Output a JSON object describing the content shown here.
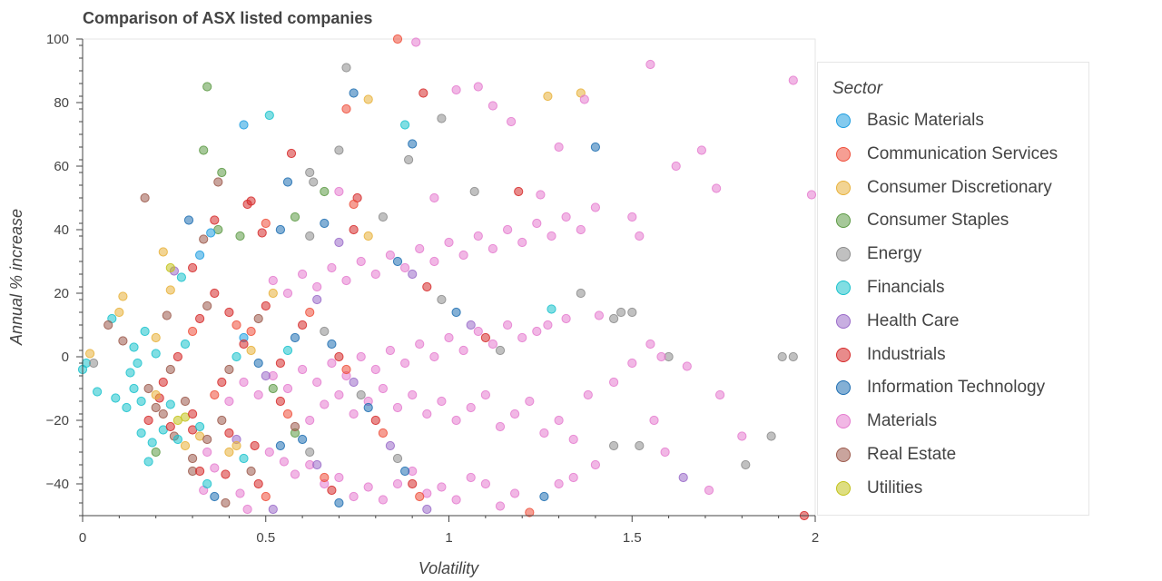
{
  "chart_data": {
    "type": "scatter",
    "title": "Comparison of ASX listed companies",
    "xlabel": "Volatility",
    "ylabel": "Annual % increase",
    "xlim": [
      0,
      2
    ],
    "ylim": [
      -50,
      100
    ],
    "x_ticks": [
      "0",
      "0.5",
      "1",
      "1.5",
      "2"
    ],
    "y_ticks": [
      "100",
      "80",
      "60",
      "40",
      "20",
      "0",
      "−20",
      "−40"
    ],
    "grid": false,
    "legend": {
      "title": "Sector",
      "position": "right"
    },
    "series": [
      {
        "name": "Basic Materials",
        "color": "#1f9ee0"
      },
      {
        "name": "Communication Services",
        "color": "#ef4f3b"
      },
      {
        "name": "Consumer Discretionary",
        "color": "#e8b13a"
      },
      {
        "name": "Consumer Staples",
        "color": "#5d9a45"
      },
      {
        "name": "Energy",
        "color": "#8c8c8c"
      },
      {
        "name": "Financials",
        "color": "#1ac2cc"
      },
      {
        "name": "Health Care",
        "color": "#9a6bc9"
      },
      {
        "name": "Industrials",
        "color": "#d62b2b"
      },
      {
        "name": "Information Technology",
        "color": "#1f6fb2"
      },
      {
        "name": "Materials",
        "color": "#e57ccf"
      },
      {
        "name": "Real Estate",
        "color": "#9c5a4c"
      },
      {
        "name": "Utilities",
        "color": "#c2c21a"
      }
    ],
    "points": [
      [
        0.86,
        100,
        1
      ],
      [
        0.91,
        99,
        9
      ],
      [
        1.55,
        92,
        9
      ],
      [
        1.94,
        87,
        9
      ],
      [
        0.72,
        91,
        4
      ],
      [
        0.34,
        85,
        3
      ],
      [
        0.74,
        83,
        8
      ],
      [
        0.93,
        83,
        7
      ],
      [
        0.78,
        81,
        2
      ],
      [
        1.27,
        82,
        2
      ],
      [
        1.36,
        83,
        2
      ],
      [
        1.02,
        84,
        9
      ],
      [
        1.08,
        85,
        9
      ],
      [
        1.12,
        79,
        9
      ],
      [
        0.72,
        78,
        1
      ],
      [
        0.98,
        75,
        4
      ],
      [
        0.51,
        76,
        5
      ],
      [
        0.44,
        73,
        0
      ],
      [
        0.88,
        73,
        5
      ],
      [
        1.4,
        66,
        8
      ],
      [
        0.9,
        67,
        8
      ],
      [
        1.17,
        74,
        9
      ],
      [
        1.37,
        81,
        9
      ],
      [
        1.3,
        66,
        9
      ],
      [
        1.62,
        60,
        9
      ],
      [
        1.69,
        65,
        9
      ],
      [
        1.73,
        53,
        9
      ],
      [
        0.33,
        65,
        3
      ],
      [
        0.57,
        64,
        7
      ],
      [
        0.7,
        65,
        4
      ],
      [
        0.89,
        62,
        4
      ],
      [
        0.38,
        58,
        3
      ],
      [
        0.37,
        55,
        10
      ],
      [
        0.63,
        55,
        4
      ],
      [
        0.62,
        58,
        4
      ],
      [
        0.56,
        55,
        8
      ],
      [
        0.7,
        52,
        9
      ],
      [
        0.66,
        52,
        3
      ],
      [
        0.75,
        50,
        7
      ],
      [
        0.74,
        48,
        1
      ],
      [
        0.96,
        50,
        9
      ],
      [
        1.07,
        52,
        4
      ],
      [
        1.19,
        52,
        7
      ],
      [
        1.25,
        51,
        9
      ],
      [
        0.45,
        48,
        7
      ],
      [
        0.46,
        49,
        7
      ],
      [
        0.49,
        39,
        7
      ],
      [
        0.43,
        38,
        3
      ],
      [
        0.37,
        40,
        3
      ],
      [
        0.36,
        43,
        7
      ],
      [
        0.33,
        37,
        10
      ],
      [
        0.35,
        39,
        0
      ],
      [
        0.29,
        43,
        8
      ],
      [
        0.32,
        32,
        0
      ],
      [
        0.22,
        33,
        2
      ],
      [
        0.25,
        27,
        6
      ],
      [
        0.3,
        28,
        7
      ],
      [
        0.27,
        25,
        5
      ],
      [
        0.24,
        21,
        2
      ],
      [
        0.23,
        13,
        10
      ],
      [
        0.11,
        19,
        2
      ],
      [
        0.1,
        14,
        2
      ],
      [
        0.08,
        12,
        5
      ],
      [
        0.07,
        10,
        10
      ],
      [
        0.11,
        5,
        10
      ],
      [
        0.14,
        3,
        5
      ],
      [
        0.17,
        8,
        5
      ],
      [
        0.2,
        6,
        2
      ],
      [
        0.2,
        1,
        5
      ],
      [
        0.15,
        -2,
        5
      ],
      [
        0.13,
        -5,
        5
      ],
      [
        0.14,
        -10,
        5
      ],
      [
        0.16,
        -14,
        5
      ],
      [
        0.12,
        -16,
        5
      ],
      [
        0.09,
        -13,
        5
      ],
      [
        0.04,
        -11,
        5
      ],
      [
        0.01,
        -2,
        5
      ],
      [
        0.0,
        -4,
        5
      ],
      [
        0.02,
        1,
        2
      ],
      [
        0.03,
        -2,
        4
      ],
      [
        0.18,
        -10,
        10
      ],
      [
        0.21,
        -13,
        7
      ],
      [
        0.24,
        -15,
        5
      ],
      [
        0.22,
        -23,
        5
      ],
      [
        0.19,
        -27,
        5
      ],
      [
        0.18,
        -33,
        5
      ],
      [
        0.2,
        -30,
        3
      ],
      [
        0.25,
        -25,
        10
      ],
      [
        0.28,
        -19,
        11
      ],
      [
        0.3,
        -23,
        7
      ],
      [
        0.32,
        -25,
        2
      ],
      [
        0.34,
        -30,
        9
      ],
      [
        0.36,
        -35,
        9
      ],
      [
        0.39,
        -37,
        7
      ],
      [
        0.3,
        -36,
        10
      ],
      [
        0.33,
        -42,
        9
      ],
      [
        0.39,
        -46,
        10
      ],
      [
        0.43,
        -43,
        9
      ],
      [
        0.45,
        -48,
        9
      ],
      [
        0.4,
        -30,
        2
      ],
      [
        0.42,
        -26,
        6
      ],
      [
        0.47,
        -28,
        7
      ],
      [
        0.51,
        -30,
        9
      ],
      [
        0.55,
        -33,
        9
      ],
      [
        0.58,
        -37,
        9
      ],
      [
        0.62,
        -34,
        9
      ],
      [
        0.66,
        -40,
        9
      ],
      [
        0.7,
        -38,
        9
      ],
      [
        0.74,
        -44,
        9
      ],
      [
        0.78,
        -41,
        9
      ],
      [
        0.82,
        -45,
        9
      ],
      [
        0.86,
        -40,
        9
      ],
      [
        0.9,
        -36,
        9
      ],
      [
        0.94,
        -43,
        9
      ],
      [
        0.98,
        -41,
        9
      ],
      [
        1.02,
        -45,
        9
      ],
      [
        1.06,
        -38,
        9
      ],
      [
        1.1,
        -40,
        9
      ],
      [
        1.14,
        -47,
        9
      ],
      [
        1.18,
        -43,
        9
      ],
      [
        1.22,
        -49,
        1
      ],
      [
        1.26,
        -44,
        8
      ],
      [
        1.3,
        -40,
        9
      ],
      [
        1.34,
        -38,
        9
      ],
      [
        1.4,
        -34,
        9
      ],
      [
        1.45,
        -28,
        4
      ],
      [
        1.52,
        -28,
        4
      ],
      [
        1.56,
        -20,
        9
      ],
      [
        1.59,
        -30,
        9
      ],
      [
        1.64,
        -38,
        6
      ],
      [
        1.71,
        -42,
        9
      ],
      [
        1.81,
        -34,
        4
      ],
      [
        1.88,
        -25,
        4
      ],
      [
        1.97,
        -50,
        7
      ],
      [
        0.54,
        -28,
        8
      ],
      [
        0.58,
        -24,
        3
      ],
      [
        0.62,
        -20,
        9
      ],
      [
        0.66,
        -15,
        9
      ],
      [
        0.7,
        -12,
        9
      ],
      [
        0.74,
        -18,
        9
      ],
      [
        0.78,
        -14,
        9
      ],
      [
        0.82,
        -10,
        9
      ],
      [
        0.86,
        -16,
        9
      ],
      [
        0.9,
        -12,
        9
      ],
      [
        0.94,
        -18,
        9
      ],
      [
        0.98,
        -14,
        9
      ],
      [
        1.02,
        -20,
        9
      ],
      [
        1.06,
        -16,
        9
      ],
      [
        1.1,
        -12,
        9
      ],
      [
        1.14,
        -22,
        9
      ],
      [
        1.18,
        -18,
        9
      ],
      [
        1.22,
        -14,
        9
      ],
      [
        1.26,
        -24,
        9
      ],
      [
        1.3,
        -20,
        9
      ],
      [
        1.34,
        -26,
        9
      ],
      [
        1.38,
        -12,
        9
      ],
      [
        1.45,
        -8,
        9
      ],
      [
        1.5,
        -2,
        9
      ],
      [
        1.55,
        4,
        9
      ],
      [
        1.6,
        0,
        4
      ],
      [
        1.58,
        0,
        9
      ],
      [
        1.65,
        -3,
        9
      ],
      [
        1.74,
        -12,
        9
      ],
      [
        1.8,
        -25,
        9
      ],
      [
        1.91,
        0,
        4
      ],
      [
        1.94,
        0,
        4
      ],
      [
        1.99,
        51,
        9
      ],
      [
        1.47,
        14,
        4
      ],
      [
        1.5,
        14,
        4
      ],
      [
        1.45,
        12,
        4
      ],
      [
        1.41,
        13,
        9
      ],
      [
        1.36,
        20,
        4
      ],
      [
        1.32,
        12,
        9
      ],
      [
        1.28,
        15,
        5
      ],
      [
        1.27,
        10,
        9
      ],
      [
        1.24,
        8,
        9
      ],
      [
        1.2,
        6,
        9
      ],
      [
        1.16,
        10,
        9
      ],
      [
        1.12,
        4,
        9
      ],
      [
        1.08,
        8,
        9
      ],
      [
        1.04,
        2,
        9
      ],
      [
        1.0,
        6,
        9
      ],
      [
        0.96,
        0,
        9
      ],
      [
        0.92,
        4,
        9
      ],
      [
        0.88,
        -2,
        9
      ],
      [
        0.84,
        2,
        9
      ],
      [
        0.8,
        -4,
        9
      ],
      [
        0.76,
        0,
        9
      ],
      [
        0.72,
        -6,
        9
      ],
      [
        0.68,
        -2,
        9
      ],
      [
        0.64,
        -8,
        9
      ],
      [
        0.6,
        -4,
        9
      ],
      [
        0.56,
        -10,
        9
      ],
      [
        0.52,
        -6,
        9
      ],
      [
        0.48,
        -12,
        9
      ],
      [
        0.44,
        -8,
        9
      ],
      [
        0.4,
        -14,
        9
      ],
      [
        0.52,
        24,
        9
      ],
      [
        0.56,
        20,
        9
      ],
      [
        0.6,
        26,
        9
      ],
      [
        0.64,
        22,
        9
      ],
      [
        0.68,
        28,
        9
      ],
      [
        0.72,
        24,
        9
      ],
      [
        0.76,
        30,
        9
      ],
      [
        0.8,
        26,
        9
      ],
      [
        0.84,
        32,
        9
      ],
      [
        0.88,
        28,
        9
      ],
      [
        0.92,
        34,
        9
      ],
      [
        0.96,
        30,
        9
      ],
      [
        1.0,
        36,
        9
      ],
      [
        1.04,
        32,
        9
      ],
      [
        1.08,
        38,
        9
      ],
      [
        1.12,
        34,
        9
      ],
      [
        1.16,
        40,
        9
      ],
      [
        1.2,
        36,
        9
      ],
      [
        1.24,
        42,
        9
      ],
      [
        1.28,
        38,
        9
      ],
      [
        1.32,
        44,
        9
      ],
      [
        1.36,
        40,
        9
      ],
      [
        1.4,
        47,
        9
      ],
      [
        1.5,
        44,
        9
      ],
      [
        1.52,
        38,
        9
      ],
      [
        0.5,
        42,
        1
      ],
      [
        0.54,
        40,
        8
      ],
      [
        0.58,
        44,
        3
      ],
      [
        0.62,
        38,
        4
      ],
      [
        0.66,
        42,
        8
      ],
      [
        0.7,
        36,
        6
      ],
      [
        0.74,
        40,
        7
      ],
      [
        0.78,
        38,
        2
      ],
      [
        0.82,
        44,
        4
      ],
      [
        0.86,
        30,
        8
      ],
      [
        0.9,
        26,
        6
      ],
      [
        0.94,
        22,
        7
      ],
      [
        0.98,
        18,
        4
      ],
      [
        1.02,
        14,
        8
      ],
      [
        1.06,
        10,
        6
      ],
      [
        1.1,
        6,
        7
      ],
      [
        1.14,
        2,
        4
      ],
      [
        0.4,
        14,
        7
      ],
      [
        0.42,
        10,
        1
      ],
      [
        0.44,
        6,
        0
      ],
      [
        0.46,
        2,
        2
      ],
      [
        0.48,
        -2,
        8
      ],
      [
        0.5,
        -6,
        6
      ],
      [
        0.52,
        -10,
        3
      ],
      [
        0.54,
        -14,
        7
      ],
      [
        0.56,
        -18,
        1
      ],
      [
        0.58,
        -22,
        10
      ],
      [
        0.6,
        -26,
        8
      ],
      [
        0.62,
        -30,
        4
      ],
      [
        0.64,
        -34,
        6
      ],
      [
        0.66,
        -38,
        1
      ],
      [
        0.68,
        -42,
        7
      ],
      [
        0.7,
        -46,
        8
      ],
      [
        0.36,
        20,
        7
      ],
      [
        0.34,
        16,
        10
      ],
      [
        0.32,
        12,
        7
      ],
      [
        0.3,
        8,
        1
      ],
      [
        0.28,
        4,
        5
      ],
      [
        0.26,
        0,
        7
      ],
      [
        0.24,
        -4,
        10
      ],
      [
        0.22,
        -8,
        7
      ],
      [
        0.2,
        -12,
        2
      ],
      [
        0.28,
        -14,
        10
      ],
      [
        0.3,
        -18,
        7
      ],
      [
        0.32,
        -22,
        5
      ],
      [
        0.34,
        -26,
        10
      ],
      [
        0.36,
        -12,
        1
      ],
      [
        0.38,
        -8,
        7
      ],
      [
        0.4,
        -4,
        10
      ],
      [
        0.42,
        0,
        5
      ],
      [
        0.44,
        4,
        7
      ],
      [
        0.46,
        8,
        1
      ],
      [
        0.48,
        12,
        10
      ],
      [
        0.5,
        16,
        7
      ],
      [
        0.52,
        20,
        2
      ],
      [
        0.54,
        -2,
        7
      ],
      [
        0.56,
        2,
        5
      ],
      [
        0.58,
        6,
        8
      ],
      [
        0.6,
        10,
        7
      ],
      [
        0.62,
        14,
        1
      ],
      [
        0.64,
        18,
        6
      ],
      [
        0.66,
        8,
        4
      ],
      [
        0.68,
        4,
        8
      ],
      [
        0.7,
        0,
        7
      ],
      [
        0.72,
        -4,
        1
      ],
      [
        0.74,
        -8,
        6
      ],
      [
        0.76,
        -12,
        4
      ],
      [
        0.78,
        -16,
        8
      ],
      [
        0.8,
        -20,
        7
      ],
      [
        0.82,
        -24,
        1
      ],
      [
        0.84,
        -28,
        6
      ],
      [
        0.86,
        -32,
        4
      ],
      [
        0.88,
        -36,
        8
      ],
      [
        0.9,
        -40,
        7
      ],
      [
        0.92,
        -44,
        1
      ],
      [
        0.94,
        -48,
        6
      ],
      [
        0.26,
        -20,
        11
      ],
      [
        0.28,
        -28,
        2
      ],
      [
        0.3,
        -32,
        10
      ],
      [
        0.32,
        -36,
        7
      ],
      [
        0.34,
        -40,
        5
      ],
      [
        0.36,
        -44,
        8
      ],
      [
        0.38,
        -20,
        10
      ],
      [
        0.4,
        -24,
        7
      ],
      [
        0.42,
        -28,
        2
      ],
      [
        0.44,
        -32,
        5
      ],
      [
        0.46,
        -36,
        10
      ],
      [
        0.48,
        -40,
        7
      ],
      [
        0.5,
        -44,
        1
      ],
      [
        0.52,
        -48,
        6
      ],
      [
        0.22,
        -18,
        10
      ],
      [
        0.24,
        -22,
        7
      ],
      [
        0.26,
        -26,
        5
      ],
      [
        0.2,
        -16,
        10
      ],
      [
        0.18,
        -20,
        7
      ],
      [
        0.16,
        -24,
        5
      ],
      [
        0.17,
        50,
        10
      ],
      [
        0.24,
        28,
        11
      ]
    ]
  }
}
